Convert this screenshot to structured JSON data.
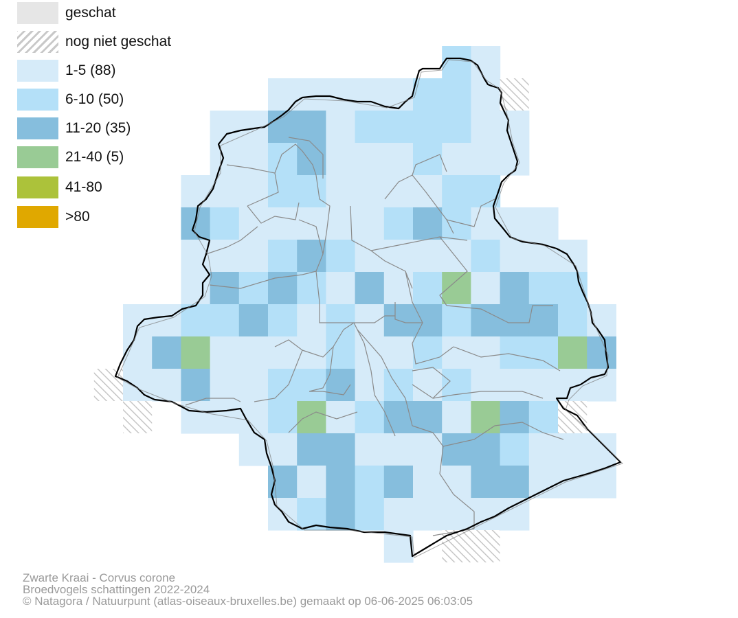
{
  "legend": [
    {
      "label": "geschat",
      "color": "#e6e6e6",
      "pattern": false
    },
    {
      "label": "nog niet geschat",
      "color": "#ffffff",
      "pattern": true
    },
    {
      "label": "1-5 (88)",
      "color": "#d6ebf9",
      "pattern": false
    },
    {
      "label": "6-10 (50)",
      "color": "#b4e0f8",
      "pattern": false
    },
    {
      "label": "11-20 (35)",
      "color": "#86bedd",
      "pattern": false
    },
    {
      "label": "21-40 (5)",
      "color": "#99cb95",
      "pattern": false
    },
    {
      "label": "41-80",
      "color": "#acc23a",
      "pattern": false
    },
    {
      "label": ">80",
      "color": "#e0a800",
      "pattern": false
    }
  ],
  "footer": {
    "species": "Zwarte Kraai - Corvus corone",
    "subtitle": "Broedvogels schattingen 2022-2024",
    "credit": "© Natagora / Natuurpunt (atlas-oiseaux-bruxelles.be) gemaakt op 06-06-2025 06:03:05"
  }
}
